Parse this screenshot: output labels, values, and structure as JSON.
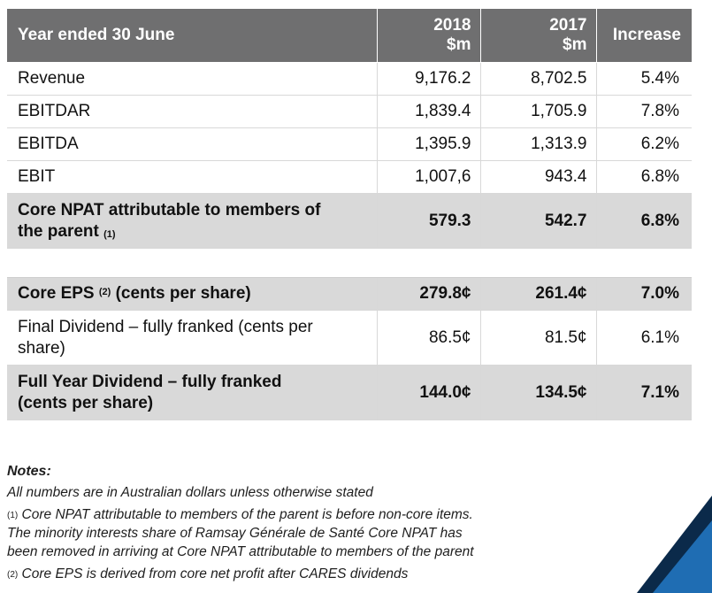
{
  "table": {
    "header": {
      "label": "Year ended 30 June",
      "col_2018_year": "2018",
      "col_2018_unit": "$m",
      "col_2017_year": "2017",
      "col_2017_unit": "$m",
      "col_increase": "Increase"
    },
    "rows": [
      {
        "label": "Revenue",
        "v2018": "9,176.2",
        "v2017": "8,702.5",
        "increase": "5.4%"
      },
      {
        "label": "EBITDAR",
        "v2018": "1,839.4",
        "v2017": "1,705.9",
        "increase": "7.8%"
      },
      {
        "label": "EBITDA",
        "v2018": "1,395.9",
        "v2017": "1,313.9",
        "increase": "6.2%"
      },
      {
        "label": "EBIT",
        "v2018": "1,007,6",
        "v2017": "943.4",
        "increase": "6.8%"
      },
      {
        "label_line1": "Core NPAT attributable to members of",
        "label_line2": "the parent",
        "footnote": "(1)",
        "v2018": "579.3",
        "v2017": "542.7",
        "increase": "6.8%"
      }
    ],
    "rows_b": [
      {
        "label": "Core EPS",
        "footnote": "(2)",
        "label_suffix": "(cents per share)",
        "v2018": "279.8¢",
        "v2017": "261.4¢",
        "increase": "7.0%"
      },
      {
        "label_line1": "Final Dividend – fully franked (cents per",
        "label_line2": "share)",
        "v2018": "86.5¢",
        "v2017": "81.5¢",
        "increase": "6.1%"
      },
      {
        "label_line1": "Full Year Dividend – fully franked",
        "label_line2": "(cents per share)",
        "v2018": "144.0¢",
        "v2017": "134.5¢",
        "increase": "7.1%"
      }
    ]
  },
  "notes": {
    "heading": "Notes:",
    "line1": "All numbers are in Australian dollars unless otherwise stated",
    "fn1_mark": "(1)",
    "fn1_line1": "Core NPAT attributable to members of the parent is before non-core items.",
    "fn1_line2": "The minority interests share of Ramsay Générale de Santé Core NPAT has",
    "fn1_line3": "been removed in arriving at Core NPAT attributable to members of the parent",
    "fn2_mark": "(2)",
    "fn2_line1": "Core EPS is derived from core net profit after CARES dividends"
  },
  "colors": {
    "header_bg": "#6f6f70",
    "shade_bg": "#d9d9d9",
    "corner_dark": "#0b2a4a",
    "corner_blue": "#1f6db3"
  }
}
